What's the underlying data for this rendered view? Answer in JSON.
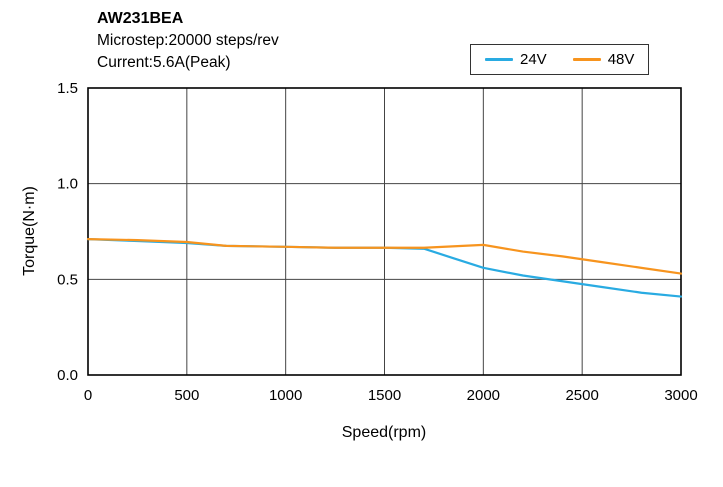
{
  "header": {
    "model": "AW231BEA",
    "microstep": "Microstep:20000 steps/rev",
    "current": "Current:5.6A(Peak)"
  },
  "legend": [
    {
      "label": "24V",
      "color": "#29abe2"
    },
    {
      "label": "48V",
      "color": "#f7941e"
    }
  ],
  "chart_data": {
    "type": "line",
    "title": "AW231BEA",
    "subtitle": "Microstep:20000 steps/rev Current:5.6A(Peak)",
    "xlabel": "Speed(rpm)",
    "ylabel": "Torque(N·m)",
    "xlim": [
      0,
      3000
    ],
    "ylim": [
      0,
      1.5
    ],
    "xticks": [
      0,
      500,
      1000,
      1500,
      2000,
      2500,
      3000
    ],
    "yticks": [
      0,
      0.5,
      1,
      1.5
    ],
    "grid": true,
    "legend_position": "top-right",
    "series": [
      {
        "name": "24V",
        "color": "#29abe2",
        "x": [
          0,
          250,
          500,
          700,
          1000,
          1250,
          1500,
          1700,
          1850,
          2000,
          2200,
          2400,
          2600,
          2800,
          3000
        ],
        "y": [
          0.71,
          0.7,
          0.69,
          0.675,
          0.67,
          0.665,
          0.665,
          0.66,
          0.61,
          0.56,
          0.52,
          0.49,
          0.46,
          0.43,
          0.41
        ]
      },
      {
        "name": "48V",
        "color": "#f7941e",
        "x": [
          0,
          250,
          500,
          700,
          1000,
          1250,
          1500,
          1700,
          2000,
          2200,
          2400,
          2600,
          2800,
          3000
        ],
        "y": [
          0.71,
          0.705,
          0.695,
          0.675,
          0.67,
          0.665,
          0.665,
          0.665,
          0.68,
          0.645,
          0.62,
          0.59,
          0.56,
          0.53
        ]
      }
    ]
  }
}
